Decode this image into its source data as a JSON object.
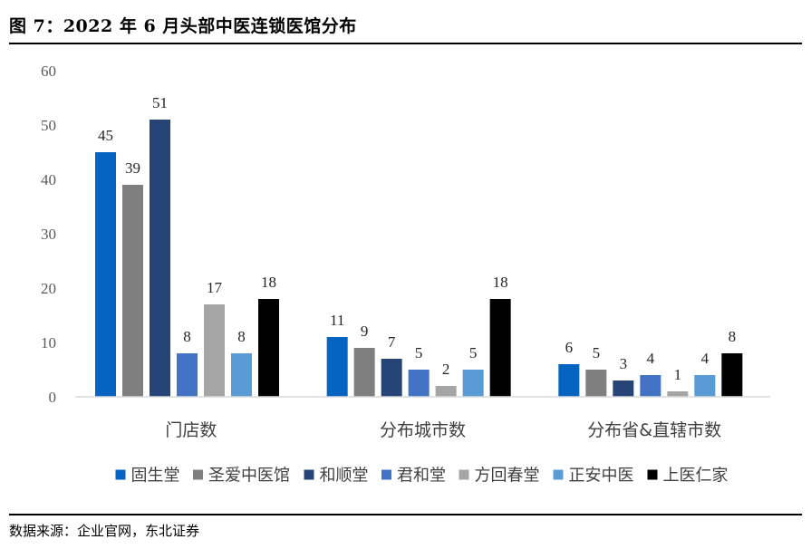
{
  "figure": {
    "title": "图 7：2022 年 6 月头部中医连锁医馆分布",
    "source": "数据来源：企业官网，东北证券"
  },
  "chart_data": {
    "type": "bar",
    "categories": [
      "门店数",
      "分布城市数",
      "分布省&直辖市数"
    ],
    "series": [
      {
        "name": "固生堂",
        "color": "#0563C1",
        "values": [
          45,
          11,
          6
        ]
      },
      {
        "name": "圣爱中医馆",
        "color": "#7F7F7F",
        "values": [
          39,
          9,
          5
        ]
      },
      {
        "name": "和顺堂",
        "color": "#264478",
        "values": [
          51,
          7,
          3
        ]
      },
      {
        "name": "君和堂",
        "color": "#4472C4",
        "values": [
          8,
          5,
          4
        ]
      },
      {
        "name": "方回春堂",
        "color": "#A5A5A5",
        "values": [
          17,
          2,
          1
        ]
      },
      {
        "name": "正安中医",
        "color": "#5B9BD5",
        "values": [
          8,
          5,
          4
        ]
      },
      {
        "name": "上医仁家",
        "color": "#000000",
        "values": [
          18,
          18,
          8
        ]
      }
    ],
    "ylim": [
      0,
      60
    ],
    "yticks": [
      0,
      10,
      20,
      30,
      40,
      50,
      60
    ],
    "grid": false,
    "legend_position": "bottom",
    "data_labels": true
  }
}
